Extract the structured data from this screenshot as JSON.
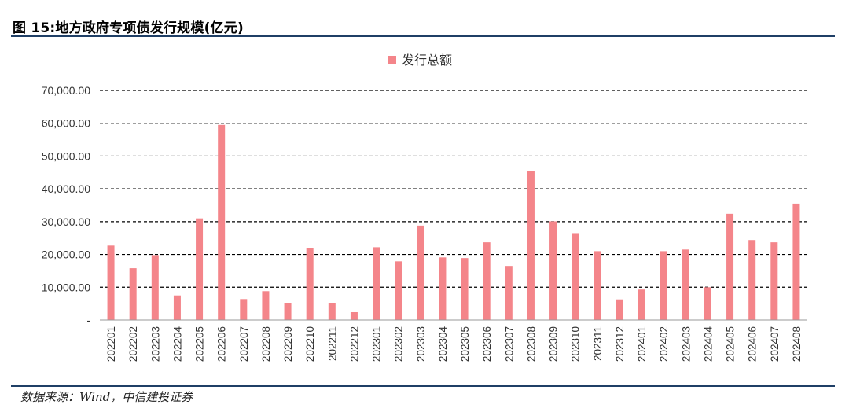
{
  "header": {
    "title": "图 15:地方政府专项债发行规模(亿元)"
  },
  "footer": {
    "source": "数据来源：Wind，中信建投证券"
  },
  "colors": {
    "bar": "#F4858A",
    "rule": "#1F3F66",
    "grid": "#000000",
    "text": "#333333"
  },
  "chart_data": {
    "type": "bar",
    "title": "",
    "xlabel": "",
    "ylabel": "",
    "ylim": [
      0,
      70000
    ],
    "yticks": [
      "-",
      "10,000.00",
      "20,000.00",
      "30,000.00",
      "40,000.00",
      "50,000.00",
      "60,000.00",
      "70,000.00"
    ],
    "ytick_values": [
      0,
      10000,
      20000,
      30000,
      40000,
      50000,
      60000,
      70000
    ],
    "grid": "dashed-horizontal",
    "legend": "top-center",
    "categories": [
      "202201",
      "202202",
      "202203",
      "202204",
      "202205",
      "202206",
      "202207",
      "202208",
      "202209",
      "202210",
      "202211",
      "202212",
      "202301",
      "202302",
      "202303",
      "202304",
      "202305",
      "202306",
      "202307",
      "202308",
      "202309",
      "202310",
      "202311",
      "202312",
      "202401",
      "202402",
      "202403",
      "202404",
      "202405",
      "202406",
      "202407",
      "202408"
    ],
    "series": [
      {
        "name": "发行总额",
        "values": [
          22700,
          15800,
          19800,
          7500,
          31000,
          59500,
          6400,
          8800,
          5200,
          22000,
          5200,
          2400,
          22200,
          17900,
          28800,
          19100,
          18900,
          23700,
          16500,
          45400,
          30100,
          26500,
          21000,
          6300,
          9300,
          21000,
          21500,
          10000,
          32400,
          24400,
          23700,
          35500
        ]
      }
    ]
  }
}
